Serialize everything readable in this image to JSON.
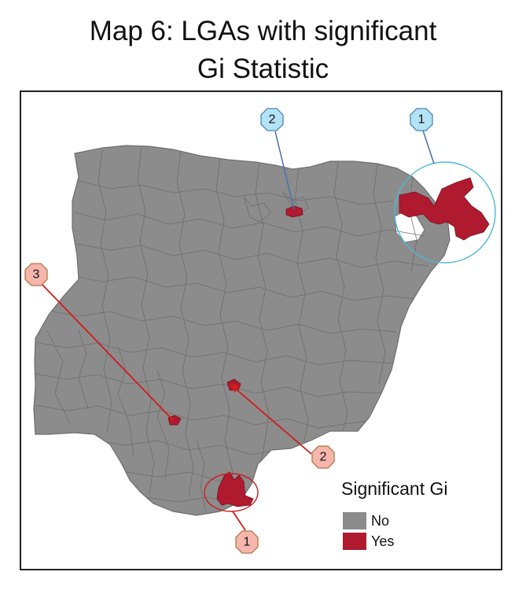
{
  "map": {
    "title_line1": "Map 6: LGAs with significant",
    "title_line2": "Gi Statistic",
    "colors": {
      "no": "#8c8c8c",
      "yes": "#b01a2e",
      "blue_marker_fill": "#b3e3f5",
      "blue_marker_stroke": "#4a86b5",
      "red_marker_fill": "#f6b6ad",
      "red_marker_stroke": "#b07840",
      "blue_line": "#4670b0",
      "cyan_circle": "#4fb8d8",
      "red_line": "#d01c1c"
    },
    "markers": [
      {
        "label": "1",
        "group": "blue"
      },
      {
        "label": "2",
        "group": "blue"
      },
      {
        "label": "3",
        "group": "red"
      },
      {
        "label": "2",
        "group": "red"
      },
      {
        "label": "1",
        "group": "red"
      }
    ],
    "legend": {
      "title": "Significant Gi",
      "items": [
        {
          "label": "No",
          "color": "#8c8c8c"
        },
        {
          "label": "Yes",
          "color": "#b01a2e"
        }
      ]
    }
  }
}
